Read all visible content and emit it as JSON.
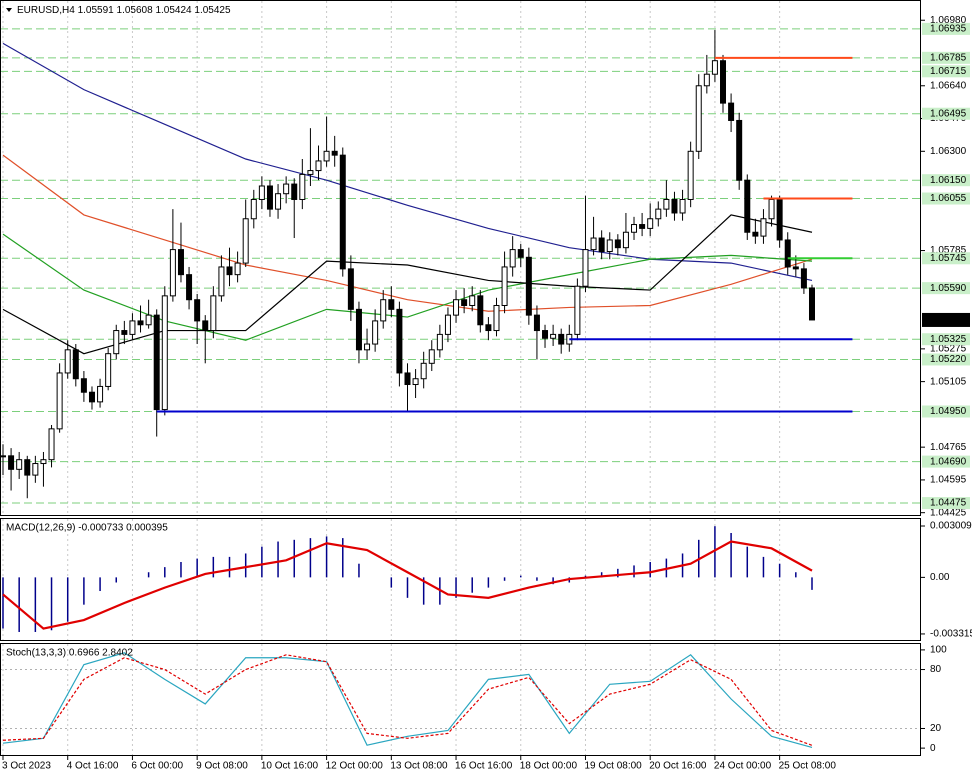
{
  "chart_data": [
    {
      "type": "candlestick",
      "symbol": "EURUSD,H4",
      "ohlc_label": [
        "1.05591",
        "1.05608",
        "1.05424",
        "1.05425"
      ],
      "categories": [
        "3 Oct 2023",
        null,
        null,
        null,
        null,
        null,
        null,
        null,
        "4 Oct 16:00",
        null,
        null,
        null,
        null,
        null,
        null,
        null,
        "6 Oct 00:00",
        null,
        null,
        null,
        null,
        null,
        null,
        null,
        "9 Oct 08:00",
        null,
        null,
        null,
        null,
        null,
        null,
        null,
        "10 Oct 16:00",
        null,
        null,
        null,
        null,
        null,
        null,
        null,
        "12 Oct 00:00",
        null,
        null,
        null,
        null,
        null,
        null,
        null,
        "13 Oct 08:00",
        null,
        null,
        null,
        null,
        null,
        null,
        null,
        "16 Oct 16:00",
        null,
        null,
        null,
        null,
        null,
        null,
        null,
        "18 Oct 00:00",
        null,
        null,
        null,
        null,
        null,
        null,
        null,
        "19 Oct 08:00",
        null,
        null,
        null,
        null,
        null,
        null,
        null,
        "20 Oct 16:00",
        null,
        null,
        null,
        null,
        null,
        null,
        null,
        "24 Oct 00:00",
        null,
        null,
        null,
        null,
        null,
        null,
        null,
        "25 Oct 08:00",
        null,
        null,
        null,
        null
      ],
      "close": [
        1.0472,
        1.0465,
        1.047,
        1.0462,
        1.0468,
        1.047,
        1.0486,
        1.0515,
        1.0527,
        1.0512,
        1.0505,
        1.05,
        1.0508,
        1.0525,
        1.0537,
        1.0535,
        1.0542,
        1.054,
        1.0545,
        1.0496,
        1.0555,
        1.0579,
        1.0566,
        1.0553,
        1.0542,
        1.0537,
        1.0555,
        1.057,
        1.0566,
        1.0572,
        1.0595,
        1.0605,
        1.0612,
        1.06,
        1.0608,
        1.0613,
        1.0605,
        1.0618,
        1.062,
        1.0625,
        1.063,
        1.0628,
        1.0569,
        1.0548,
        1.0527,
        1.053,
        1.0542,
        1.0553,
        1.0548,
        1.0515,
        1.0509,
        1.0512,
        1.052,
        1.0527,
        1.0535,
        1.0545,
        1.0553,
        1.055,
        1.0555,
        1.054,
        1.0537,
        1.055,
        1.057,
        1.0579,
        1.0575,
        1.0545,
        1.0537,
        1.0533,
        1.0535,
        1.053,
        1.0535,
        1.056,
        1.0579,
        1.0585,
        1.0578,
        1.0584,
        1.058,
        1.0588,
        1.0592,
        1.059,
        1.0595,
        1.06,
        1.0605,
        1.0598,
        1.0605,
        1.063,
        1.0664,
        1.067,
        1.0677,
        1.0655,
        1.0646,
        1.0615,
        1.0588,
        1.0586,
        1.0595,
        1.0605,
        1.0584,
        1.057,
        1.0569,
        1.05591,
        1.05425
      ],
      "high": [
        1.0478,
        1.0476,
        1.0474,
        1.0472,
        1.0472,
        1.0474,
        1.0488,
        1.052,
        1.0532,
        1.053,
        1.0516,
        1.0508,
        1.0512,
        1.0528,
        1.054,
        1.0542,
        1.0546,
        1.055,
        1.0553,
        1.0548,
        1.056,
        1.06,
        1.0593,
        1.057,
        1.0556,
        1.0545,
        1.056,
        1.0576,
        1.058,
        1.0578,
        1.0605,
        1.061,
        1.0617,
        1.0615,
        1.0613,
        1.0617,
        1.0616,
        1.0626,
        1.0642,
        1.0633,
        1.0648,
        1.0638,
        1.0632,
        1.0576,
        1.0552,
        1.0538,
        1.0548,
        1.0558,
        1.056,
        1.0552,
        1.052,
        1.0517,
        1.0526,
        1.0532,
        1.054,
        1.0549,
        1.0558,
        1.0559,
        1.056,
        1.0558,
        1.0544,
        1.0554,
        1.0578,
        1.0586,
        1.0582,
        1.058,
        1.055,
        1.054,
        1.054,
        1.0538,
        1.054,
        1.0564,
        1.0607,
        1.0596,
        1.0589,
        1.0588,
        1.0587,
        1.0598,
        1.0596,
        1.0598,
        1.0603,
        1.0604,
        1.0615,
        1.0609,
        1.061,
        1.0635,
        1.067,
        1.068,
        1.0693,
        1.068,
        1.066,
        1.065,
        1.0618,
        1.0595,
        1.06,
        1.0607,
        1.0607,
        1.0588,
        1.0576,
        1.0572,
        1.05608
      ],
      "low": [
        1.0462,
        1.0454,
        1.046,
        1.045,
        1.0458,
        1.0456,
        1.0466,
        1.0484,
        1.0512,
        1.0508,
        1.05,
        1.0496,
        1.0497,
        1.0506,
        1.0522,
        1.053,
        1.0532,
        1.0536,
        1.0538,
        1.0482,
        1.0493,
        1.0552,
        1.0562,
        1.0548,
        1.053,
        1.052,
        1.0533,
        1.0552,
        1.056,
        1.0562,
        1.057,
        1.059,
        1.06,
        1.0596,
        1.0595,
        1.0603,
        1.0585,
        1.06,
        1.0612,
        1.0615,
        1.0622,
        1.0622,
        1.0565,
        1.0542,
        1.052,
        1.0522,
        1.0526,
        1.0538,
        1.0544,
        1.0508,
        1.0495,
        1.0502,
        1.0507,
        1.0516,
        1.0523,
        1.0531,
        1.0541,
        1.0546,
        1.0547,
        1.0536,
        1.0532,
        1.0534,
        1.0546,
        1.0565,
        1.057,
        1.054,
        1.0522,
        1.0528,
        1.0529,
        1.0525,
        1.0526,
        1.0532,
        1.0557,
        1.0576,
        1.0574,
        1.0574,
        1.0576,
        1.0577,
        1.0584,
        1.0586,
        1.0586,
        1.0591,
        1.0596,
        1.0594,
        1.0594,
        1.0601,
        1.0626,
        1.066,
        1.0666,
        1.065,
        1.064,
        1.061,
        1.0584,
        1.0582,
        1.0582,
        1.0591,
        1.058,
        1.0566,
        1.0565,
        1.0556,
        1.05424
      ],
      "xlim": [
        -0.37,
        113.35
      ],
      "ylim": [
        1.04413,
        1.07085
      ],
      "yticks": [
        {
          "value": 1.0698,
          "label": "1.06980"
        },
        {
          "value": 1.0664,
          "label": "1.06640"
        },
        {
          "value": 1.0647,
          "label": "1.06470"
        },
        {
          "value": 1.063,
          "label": "1.06300"
        },
        {
          "value": 1.05785,
          "label": "1.05785"
        },
        {
          "value": 1.05275,
          "label": "1.05275"
        },
        {
          "value": 1.05105,
          "label": "1.05105"
        },
        {
          "value": 1.04765,
          "label": "1.04765"
        },
        {
          "value": 1.04595,
          "label": "1.04595"
        },
        {
          "value": 1.04425,
          "label": "1.04425"
        }
      ],
      "levels": [
        {
          "value": 1.06935,
          "label": "1.06935"
        },
        {
          "value": 1.06785,
          "label": "1.06785"
        },
        {
          "value": 1.06715,
          "label": "1.06715"
        },
        {
          "value": 1.06495,
          "label": "1.06495"
        },
        {
          "value": 1.0615,
          "label": "1.06150"
        },
        {
          "value": 1.06055,
          "label": "1.06055"
        },
        {
          "value": 1.05745,
          "label": "1.05745"
        },
        {
          "value": 1.0559,
          "label": "1.05590"
        },
        {
          "value": 1.05325,
          "label": "1.05325"
        },
        {
          "value": 1.0522,
          "label": "1.05220"
        },
        {
          "value": 1.0495,
          "label": "1.04950"
        },
        {
          "value": 1.0469,
          "label": "1.04690"
        },
        {
          "value": 1.04475,
          "label": "1.04475"
        }
      ],
      "level_color": "#7ccf7c",
      "current": {
        "value": 1.05425,
        "label": "1.05425"
      },
      "lines": [
        {
          "value": 1.06785,
          "color": "#ff4a1a",
          "start": 88,
          "end": 105
        },
        {
          "value": 1.06055,
          "color": "#ff4a1a",
          "start": 94,
          "end": 105
        },
        {
          "value": 1.05745,
          "color": "#32cd32",
          "start": 97,
          "end": 105
        },
        {
          "value": 1.05325,
          "color": "#0000cd",
          "start": 70,
          "end": 105
        },
        {
          "value": 1.0495,
          "color": "#0000cd",
          "start": 19,
          "end": 105
        }
      ],
      "moving_averages": [
        {
          "color": "#202090",
          "x": [
            0,
            10,
            20,
            30,
            40,
            50,
            60,
            70,
            80,
            90,
            100
          ],
          "values": [
            1.0686,
            1.0662,
            1.0644,
            1.0626,
            1.0615,
            1.0602,
            1.059,
            1.058,
            1.0574,
            1.0572,
            1.0563
          ]
        },
        {
          "color": "#e0502a",
          "x": [
            0,
            10,
            20,
            30,
            40,
            50,
            60,
            70,
            80,
            90,
            100
          ],
          "values": [
            1.0628,
            1.0597,
            1.0584,
            1.0571,
            1.0563,
            1.0553,
            1.0547,
            1.0549,
            1.055,
            1.0561,
            1.0574
          ]
        },
        {
          "color": "#22a022",
          "x": [
            0,
            10,
            20,
            30,
            40,
            50,
            60,
            70,
            80,
            90,
            100
          ],
          "values": [
            1.0587,
            1.0558,
            1.0542,
            1.0532,
            1.0548,
            1.0544,
            1.0558,
            1.0566,
            1.0574,
            1.0576,
            1.0573
          ]
        },
        {
          "color": "#000000",
          "x": [
            0,
            10,
            20,
            30,
            40,
            50,
            60,
            70,
            80,
            90,
            100
          ],
          "values": [
            1.0548,
            1.0525,
            1.0537,
            1.0537,
            1.0573,
            1.0571,
            1.0563,
            1.056,
            1.0558,
            1.0597,
            1.0588
          ]
        }
      ]
    },
    {
      "type": "macd",
      "label": "MACD(12,26,9) -0.000733 0.000395",
      "histogram": {
        "color": "#00008b",
        "x": [
          0,
          2,
          4,
          6,
          8,
          10,
          12,
          14,
          16,
          18,
          20,
          22,
          24,
          26,
          28,
          30,
          32,
          34,
          36,
          38,
          40,
          42,
          44,
          46,
          48,
          50,
          52,
          54,
          56,
          58,
          60,
          62,
          64,
          66,
          68,
          70,
          72,
          74,
          76,
          78,
          80,
          82,
          84,
          86,
          88,
          90,
          92,
          94,
          96,
          98,
          100
        ],
        "values": [
          -0.003,
          -0.0032,
          -0.0032,
          -0.0031,
          -0.0026,
          -0.0016,
          -0.0008,
          -0.0003,
          0,
          0.0003,
          0.0006,
          0.0009,
          0.0011,
          0.0012,
          0.0012,
          0.0014,
          0.0018,
          0.0021,
          0.0022,
          0.0023,
          0.0024,
          0.0023,
          0.0008,
          0,
          -0.0006,
          -0.0012,
          -0.0016,
          -0.0016,
          -0.0012,
          -0.0009,
          -0.0006,
          -0.0002,
          0.0001,
          -0.0002,
          -0.0004,
          -0.0003,
          0.0001,
          0.0003,
          0.0005,
          0.0007,
          0.0009,
          0.0011,
          0.0014,
          0.0022,
          0.003,
          0.0026,
          0.0018,
          0.0012,
          0.0008,
          0.0003,
          -0.000733
        ]
      },
      "signal": {
        "color": "#e00000",
        "x": [
          0,
          5,
          10,
          15,
          20,
          25,
          30,
          35,
          40,
          45,
          50,
          55,
          60,
          65,
          70,
          75,
          80,
          85,
          90,
          95,
          100
        ],
        "values": [
          -0.001,
          -0.003,
          -0.0025,
          -0.0015,
          -0.0006,
          0.0002,
          0.0006,
          0.001,
          0.002,
          0.0016,
          0.0003,
          -0.001,
          -0.0012,
          -0.0006,
          -0.0001,
          0.0001,
          0.0003,
          0.0008,
          0.0021,
          0.0017,
          0.000395
        ]
      },
      "ylim": [
        -0.00367,
        0.00342
      ],
      "yticks": [
        0.003009,
        {
          "value": 0,
          "label": "0.00"
        },
        -0.003315
      ]
    },
    {
      "type": "stochastic",
      "label": "Stoch(13,3,3) 0.6966 2.8402",
      "main": {
        "color": "#2aa6c0",
        "x": [
          0,
          5,
          10,
          15,
          20,
          25,
          30,
          35,
          40,
          45,
          50,
          55,
          60,
          65,
          70,
          75,
          80,
          85,
          90,
          95,
          100
        ],
        "values": [
          5,
          10,
          85,
          97,
          70,
          45,
          92,
          92,
          88,
          3,
          12,
          18,
          70,
          75,
          15,
          65,
          68,
          95,
          50,
          12,
          0.6966
        ]
      },
      "signal": {
        "color": "#e00000",
        "x": [
          0,
          5,
          10,
          15,
          20,
          25,
          30,
          35,
          40,
          45,
          50,
          55,
          60,
          65,
          70,
          75,
          80,
          85,
          90,
          95,
          100
        ],
        "values": [
          8,
          10,
          70,
          92,
          80,
          55,
          80,
          95,
          88,
          15,
          10,
          15,
          60,
          72,
          25,
          55,
          65,
          90,
          70,
          18,
          2.8402
        ]
      },
      "ylim": [
        -7,
        106
      ],
      "yticks": [
        100,
        80,
        20,
        0
      ],
      "levels": [
        80,
        20
      ]
    }
  ]
}
